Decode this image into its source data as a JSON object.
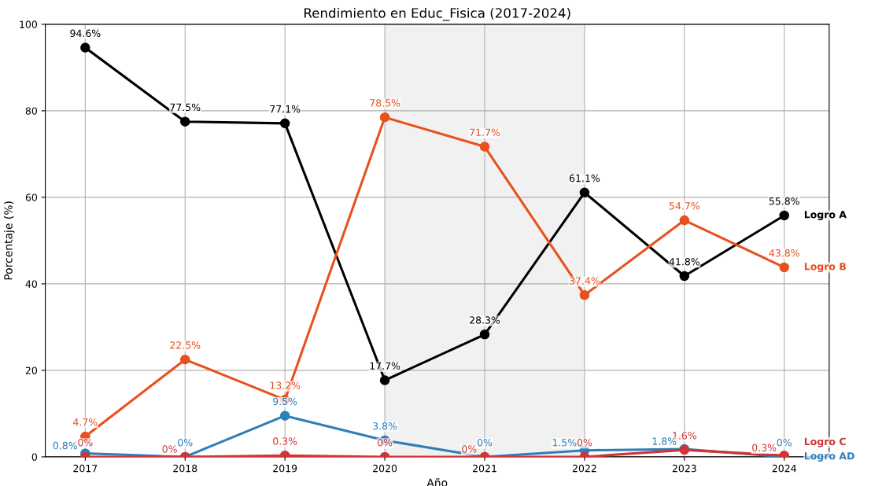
{
  "chart_data": {
    "type": "line",
    "title": "Rendimiento en Educ_Fisica (2017-2024)",
    "xlabel": "Año",
    "ylabel": "Porcentaje (%)",
    "x": [
      2017,
      2018,
      2019,
      2020,
      2021,
      2022,
      2023,
      2024
    ],
    "xlim": [
      2016.6,
      2024.45
    ],
    "xticks": [
      2017,
      2018,
      2019,
      2020,
      2021,
      2022,
      2023,
      2024
    ],
    "ylim": [
      0,
      100
    ],
    "yticks": [
      0,
      20,
      40,
      60,
      80,
      100
    ],
    "grid": true,
    "marker": "circle",
    "line_style": "solid",
    "bands": [
      {
        "axis": "x",
        "from": 2020,
        "to": 2022,
        "color": "#f1f1f1"
      }
    ],
    "series": [
      {
        "name": "Logro A",
        "color": "#000000",
        "values": [
          94.6,
          77.5,
          77.1,
          17.7,
          28.3,
          61.1,
          41.8,
          55.8
        ],
        "value_labels": [
          "94.6%",
          "77.5%",
          "77.1%",
          "17.7%",
          "28.3%",
          "61.1%",
          "41.8%",
          "55.8%"
        ]
      },
      {
        "name": "Logro B",
        "color": "#e8501e",
        "values": [
          4.7,
          22.5,
          13.2,
          78.5,
          71.7,
          37.4,
          54.7,
          43.8
        ],
        "value_labels": [
          "4.7%",
          "22.5%",
          "13.2%",
          "78.5%",
          "71.7%",
          "37.4%",
          "54.7%",
          "43.8%"
        ]
      },
      {
        "name": "Logro AD",
        "color": "#2e7eb8",
        "values": [
          0.8,
          0,
          9.5,
          3.8,
          0,
          1.5,
          1.8,
          0
        ],
        "value_labels": [
          "0.8%",
          "0%",
          "9.5%",
          "3.8%",
          "0%",
          "1.5%",
          "1.8%",
          "0%"
        ]
      },
      {
        "name": "Logro C",
        "color": "#d03535",
        "values": [
          0,
          0,
          0.3,
          0,
          0,
          0,
          1.6,
          0.3
        ],
        "value_labels": [
          "0%",
          "0%",
          "0.3%",
          "0%",
          "0%",
          "0%",
          "1.6%",
          "0.3%"
        ]
      }
    ]
  }
}
